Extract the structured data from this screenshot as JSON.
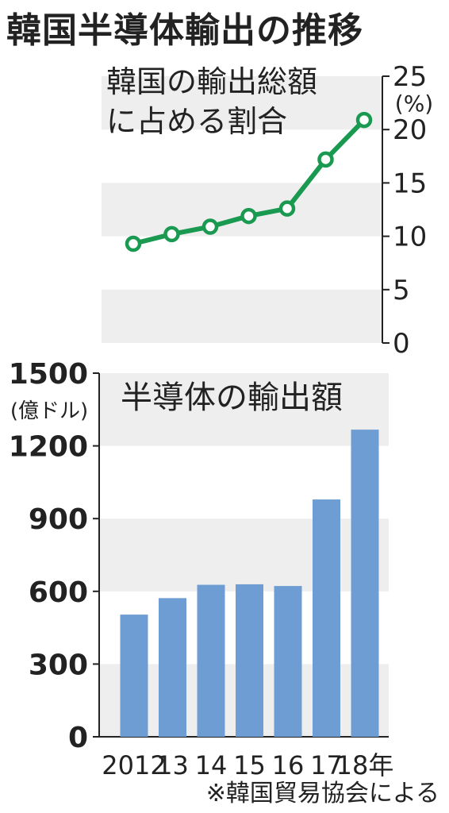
{
  "title": "韓国半導体輸出の推移",
  "source_note": "※韓国貿易協会による",
  "chart_data": [
    {
      "type": "line",
      "title": "韓国の輸出総額に占める割合",
      "title_lines": [
        "韓国の輸出総額",
        "に占める割合"
      ],
      "ylabel": "(%)",
      "ylim": [
        0,
        25
      ],
      "yticks": [
        0,
        5,
        10,
        15,
        20,
        25
      ],
      "x": [
        "2012",
        "13",
        "14",
        "15",
        "16",
        "17",
        "18"
      ],
      "values": [
        9.3,
        10.2,
        10.9,
        11.9,
        12.6,
        17.2,
        20.9
      ],
      "color": "#1a9950",
      "grid": "alternating bands"
    },
    {
      "type": "bar",
      "title": "半導体の輸出額",
      "ylabel": "(億ドル)",
      "ylim": [
        0,
        1500
      ],
      "yticks": [
        0,
        300,
        600,
        900,
        1200,
        1500
      ],
      "categories": [
        "2012",
        "13",
        "14",
        "15",
        "16",
        "17",
        "18年"
      ],
      "values": [
        504,
        572,
        627,
        629,
        622,
        979,
        1267
      ],
      "color": "#6e9dd3",
      "grid": "alternating bands"
    }
  ]
}
